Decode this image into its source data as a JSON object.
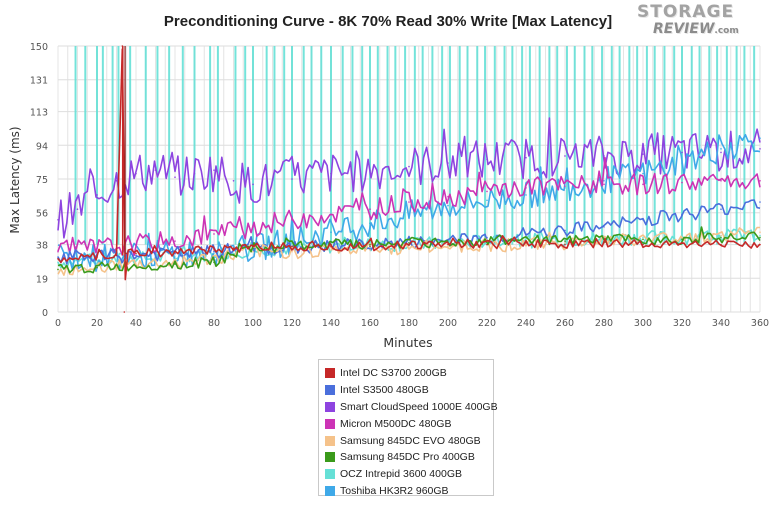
{
  "logo": {
    "line1": "STORAGE",
    "line2": "REVIEW",
    "suffix": ".com"
  },
  "chart_data": {
    "type": "line",
    "title": "Preconditioning Curve - 8K 70% Read 30% Write [Max Latency]",
    "xlabel": "Minutes",
    "ylabel": "Max Latency (ms)",
    "xlim": [
      0,
      360
    ],
    "ylim": [
      0,
      150
    ],
    "x_ticks": [
      0,
      20,
      40,
      60,
      80,
      100,
      120,
      140,
      160,
      180,
      200,
      220,
      240,
      260,
      280,
      300,
      320,
      340,
      360
    ],
    "y_ticks": [
      0,
      19,
      38,
      56,
      75,
      94,
      113,
      131,
      150
    ],
    "grid": true,
    "legend_position": "bottom",
    "series": [
      {
        "name": "Intel DC S3700 200GB",
        "color": "#c62828",
        "x": [
          0,
          20,
          30,
          33,
          34,
          35,
          40,
          60,
          80,
          90,
          100,
          120,
          140,
          160,
          180,
          200,
          220,
          240,
          260,
          280,
          300,
          320,
          340,
          360
        ],
        "y": [
          30,
          31,
          32,
          150,
          0,
          33,
          33,
          34,
          35,
          36,
          37,
          37,
          37,
          37,
          38,
          38,
          38,
          39,
          38,
          39,
          38,
          39,
          38,
          38
        ]
      },
      {
        "name": "Intel S3500 480GB",
        "color": "#4a6fdc",
        "x": [
          0,
          20,
          40,
          60,
          80,
          90,
          100,
          120,
          140,
          160,
          180,
          200,
          220,
          240,
          260,
          280,
          300,
          320,
          340,
          360
        ],
        "y": [
          31,
          31,
          32,
          33,
          34,
          35,
          36,
          36,
          37,
          38,
          39,
          40,
          42,
          44,
          46,
          48,
          52,
          55,
          58,
          62
        ]
      },
      {
        "name": "Smart CloudSpeed 1000E 400GB",
        "color": "#8e44e0",
        "x": [
          0,
          10,
          20,
          30,
          40,
          50,
          60,
          70,
          80,
          90,
          100,
          120,
          140,
          160,
          180,
          200,
          220,
          240,
          260,
          280,
          300,
          320,
          340,
          360
        ],
        "y": [
          52,
          58,
          66,
          74,
          78,
          80,
          76,
          78,
          80,
          74,
          72,
          75,
          78,
          80,
          82,
          84,
          86,
          87,
          88,
          88,
          89,
          90,
          90,
          92
        ]
      },
      {
        "name": "Micron M500DC 480GB",
        "color": "#cc33b5",
        "x": [
          0,
          20,
          40,
          60,
          80,
          100,
          120,
          140,
          160,
          180,
          200,
          220,
          240,
          260,
          280,
          300,
          320,
          340,
          360
        ],
        "y": [
          34,
          36,
          38,
          40,
          44,
          48,
          52,
          55,
          58,
          62,
          65,
          68,
          70,
          71,
          72,
          72,
          73,
          74,
          74
        ]
      },
      {
        "name": "Samsung 845DC EVO 480GB",
        "color": "#f5c28a",
        "x": [
          0,
          20,
          40,
          60,
          80,
          100,
          120,
          140,
          160,
          180,
          200,
          220,
          240,
          260,
          280,
          300,
          320,
          340,
          360
        ],
        "y": [
          24,
          26,
          27,
          28,
          30,
          34,
          34,
          35,
          35,
          36,
          37,
          38,
          38,
          39,
          40,
          41,
          42,
          43,
          45
        ]
      },
      {
        "name": "Samsung 845DC Pro 400GB",
        "color": "#3a9a1a",
        "x": [
          0,
          20,
          40,
          60,
          80,
          90,
          100,
          120,
          140,
          160,
          180,
          200,
          220,
          240,
          260,
          280,
          300,
          320,
          340,
          360
        ],
        "y": [
          24,
          25,
          26,
          27,
          28,
          32,
          36,
          37,
          38,
          38,
          39,
          39,
          40,
          40,
          40,
          41,
          41,
          41,
          42,
          42
        ]
      },
      {
        "name": "OCZ Intrepid 3600 400GB",
        "color": "#66e0d6",
        "x": [
          0,
          20,
          40,
          60,
          80,
          100,
          120,
          140,
          160,
          180,
          200,
          220,
          240,
          260,
          280,
          300,
          320,
          340,
          360
        ],
        "y": [
          28,
          29,
          30,
          31,
          33,
          35,
          36,
          37,
          38,
          38,
          39,
          40,
          40,
          41,
          41,
          42,
          42,
          43,
          43
        ]
      },
      {
        "name": "Toshiba HK3R2 960GB",
        "color": "#3fa9e8",
        "x": [
          0,
          20,
          40,
          60,
          80,
          100,
          120,
          140,
          160,
          180,
          200,
          220,
          240,
          260,
          280,
          300,
          320,
          340,
          360
        ],
        "y": [
          30,
          31,
          32,
          33,
          34,
          36,
          40,
          45,
          50,
          55,
          60,
          63,
          66,
          70,
          74,
          78,
          84,
          92,
          98
        ]
      }
    ],
    "ocz_spikes_x": [
      9,
      14,
      20,
      23,
      28,
      31,
      37,
      45,
      51,
      57,
      64,
      70,
      78,
      82,
      91,
      96,
      100,
      107,
      111,
      116,
      120,
      126,
      130,
      135,
      140,
      146,
      151,
      156,
      160,
      164,
      169,
      173,
      178,
      183,
      187,
      192,
      197,
      201,
      206,
      210,
      215,
      219,
      224,
      229,
      233,
      238,
      242,
      247,
      252,
      256,
      261,
      265,
      270,
      274,
      279,
      284,
      288,
      293,
      297,
      302,
      306,
      311,
      316,
      320,
      325,
      329,
      334,
      338,
      343,
      348,
      352,
      357
    ]
  }
}
